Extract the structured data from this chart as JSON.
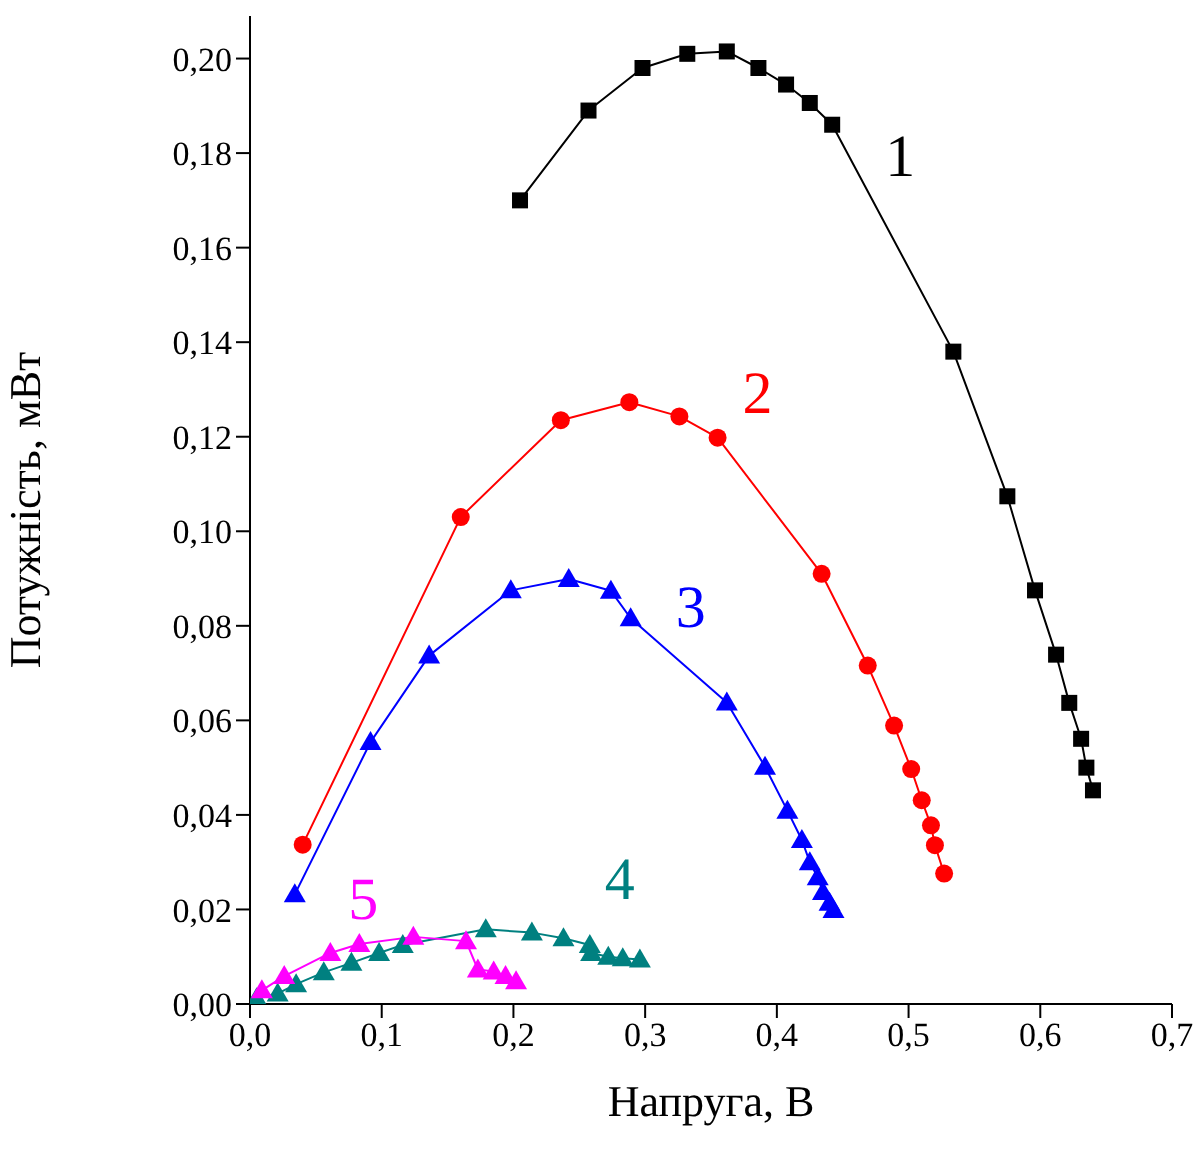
{
  "chart_data": {
    "type": "line",
    "xlabel": "Напруга, В",
    "ylabel": "Потужність, мВт",
    "xlim": [
      0,
      0.7
    ],
    "ylim": [
      0,
      0.209
    ],
    "xticks": [
      {
        "value": 0,
        "label": "0,0"
      },
      {
        "value": 0.1,
        "label": "0,1"
      },
      {
        "value": 0.2,
        "label": "0,2"
      },
      {
        "value": 0.3,
        "label": "0,3"
      },
      {
        "value": 0.4,
        "label": "0,4"
      },
      {
        "value": 0.5,
        "label": "0,5"
      },
      {
        "value": 0.6,
        "label": "0,6"
      },
      {
        "value": 0.7,
        "label": "0,7"
      }
    ],
    "yticks": [
      {
        "value": 0,
        "label": "0,00"
      },
      {
        "value": 0.02,
        "label": "0,02"
      },
      {
        "value": 0.04,
        "label": "0,04"
      },
      {
        "value": 0.06,
        "label": "0,06"
      },
      {
        "value": 0.08,
        "label": "0,08"
      },
      {
        "value": 0.1,
        "label": "0,10"
      },
      {
        "value": 0.12,
        "label": "0,12"
      },
      {
        "value": 0.14,
        "label": "0,14"
      },
      {
        "value": 0.16,
        "label": "0,16"
      },
      {
        "value": 0.18,
        "label": "0,18"
      },
      {
        "value": 0.2,
        "label": "0,20"
      }
    ],
    "grid": false,
    "legend": false,
    "line_style": "solid",
    "series": [
      {
        "name": "1",
        "color": "#000000",
        "marker": "square",
        "x": [
          0.205,
          0.257,
          0.298,
          0.332,
          0.362,
          0.386,
          0.407,
          0.425,
          0.442,
          0.534,
          0.575,
          0.596,
          0.612,
          0.622,
          0.631,
          0.635,
          0.64
        ],
        "values": [
          0.17,
          0.189,
          0.198,
          0.201,
          0.2015,
          0.198,
          0.1945,
          0.1906,
          0.186,
          0.138,
          0.1074,
          0.0875,
          0.0739,
          0.0637,
          0.0561,
          0.05,
          0.0452
        ]
      },
      {
        "name": "2",
        "color": "#ff0000",
        "marker": "circle",
        "x": [
          0.04,
          0.16,
          0.236,
          0.288,
          0.326,
          0.355,
          0.434,
          0.469,
          0.489,
          0.502,
          0.51,
          0.517,
          0.52,
          0.527
        ],
        "values": [
          0.0337,
          0.103,
          0.1235,
          0.1273,
          0.1243,
          0.1198,
          0.091,
          0.0716,
          0.0589,
          0.0497,
          0.0431,
          0.0378,
          0.0336,
          0.0276
        ]
      },
      {
        "name": "3",
        "color": "#0000ff",
        "marker": "triangle",
        "x": [
          0.034,
          0.0915,
          0.136,
          0.198,
          0.242,
          0.274,
          0.289,
          0.362,
          0.391,
          0.408,
          0.419,
          0.425,
          0.431,
          0.435,
          0.44,
          0.443
        ],
        "values": [
          0.0232,
          0.0554,
          0.0737,
          0.0875,
          0.0899,
          0.0874,
          0.0816,
          0.0638,
          0.0502,
          0.0409,
          0.0347,
          0.03,
          0.0268,
          0.0237,
          0.0214,
          0.0199
        ]
      },
      {
        "name": "4",
        "color": "#008080",
        "marker": "triangle",
        "x": [
          0.005,
          0.021,
          0.035,
          0.056,
          0.077,
          0.098,
          0.116,
          0.179,
          0.214,
          0.238,
          0.258,
          0.259,
          0.272,
          0.283,
          0.296
        ],
        "values": [
          0.0012,
          0.0022,
          0.0042,
          0.0067,
          0.0087,
          0.0108,
          0.0125,
          0.0158,
          0.0151,
          0.0139,
          0.0125,
          0.0108,
          0.01,
          0.0097,
          0.0094
        ]
      },
      {
        "name": "5",
        "color": "#ff00ff",
        "marker": "triangle",
        "x": [
          0.009,
          0.026,
          0.061,
          0.083,
          0.124,
          0.164,
          0.173,
          0.185,
          0.194,
          0.202
        ],
        "values": [
          0.0029,
          0.0059,
          0.0108,
          0.0127,
          0.0142,
          0.0133,
          0.0073,
          0.0069,
          0.0059,
          0.0048
        ]
      }
    ]
  }
}
